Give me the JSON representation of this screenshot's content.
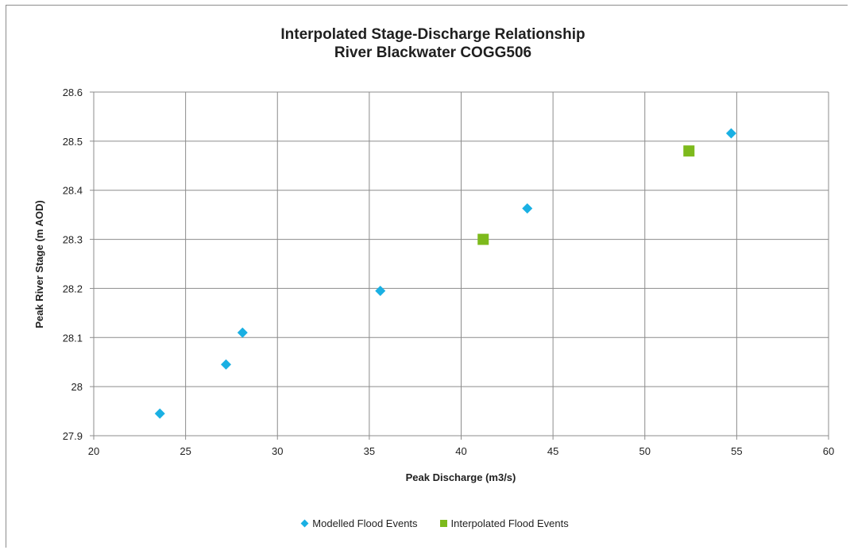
{
  "chart_data": {
    "type": "scatter",
    "title": "Interpolated Stage-Discharge Relationship",
    "subtitle": "River Blackwater COGG506",
    "xlabel": "Peak Discharge (m3/s)",
    "ylabel": "Peak River Stage (m AOD)",
    "xlim": [
      20,
      60
    ],
    "ylim": [
      27.9,
      28.6
    ],
    "x_ticks": [
      "20",
      "25",
      "30",
      "35",
      "40",
      "45",
      "50",
      "55",
      "60"
    ],
    "y_ticks": [
      "27.9",
      "28",
      "28.1",
      "28.2",
      "28.3",
      "28.4",
      "28.5",
      "28.6"
    ],
    "grid": true,
    "legend_position": "bottom",
    "series": [
      {
        "name": "Modelled Flood Events",
        "marker": "diamond",
        "color": "#1ab0e3",
        "points": [
          {
            "x": 23.6,
            "y": 27.945
          },
          {
            "x": 27.2,
            "y": 28.045
          },
          {
            "x": 28.1,
            "y": 28.11
          },
          {
            "x": 35.6,
            "y": 28.195
          },
          {
            "x": 43.6,
            "y": 28.363
          },
          {
            "x": 54.7,
            "y": 28.516
          }
        ]
      },
      {
        "name": "Interpolated Flood Events",
        "marker": "square",
        "color": "#7dba1c",
        "points": [
          {
            "x": 41.2,
            "y": 28.3
          },
          {
            "x": 52.4,
            "y": 28.48
          }
        ]
      }
    ]
  }
}
